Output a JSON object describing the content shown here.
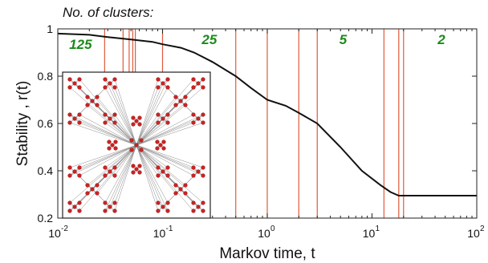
{
  "header": {
    "clusters_label": "No. of clusters:"
  },
  "chart_data": {
    "type": "line",
    "title": "",
    "xlabel": "Markov time, t",
    "ylabel": "Stability ,  r(t)",
    "xscale": "log",
    "xlim": [
      0.01,
      100
    ],
    "ylim": [
      0.2,
      1.0
    ],
    "x_ticks": [
      {
        "base": "10",
        "exp": "-2"
      },
      {
        "base": "10",
        "exp": "-1"
      },
      {
        "base": "10",
        "exp": "0"
      },
      {
        "base": "10",
        "exp": "1"
      },
      {
        "base": "10",
        "exp": "2"
      }
    ],
    "y_ticks": [
      "0.2",
      "0.4",
      "0.6",
      "0.8",
      "1"
    ],
    "y_tick_values": [
      0.2,
      0.4,
      0.6,
      0.8,
      1.0
    ],
    "grid": false,
    "series": [
      {
        "color": "#111111",
        "x": [
          0.01,
          0.02,
          0.03,
          0.05,
          0.08,
          0.1,
          0.15,
          0.2,
          0.3,
          0.5,
          0.7,
          1.0,
          1.5,
          2.0,
          3.0,
          5.0,
          8.0,
          12.0,
          15.0,
          18.0,
          20.0,
          30.0,
          50.0,
          100.0
        ],
        "y": [
          0.98,
          0.975,
          0.965,
          0.955,
          0.945,
          0.935,
          0.92,
          0.9,
          0.86,
          0.8,
          0.75,
          0.7,
          0.675,
          0.645,
          0.6,
          0.5,
          0.4,
          0.34,
          0.31,
          0.295,
          0.295,
          0.295,
          0.295,
          0.295
        ]
      }
    ],
    "vertical_lines": {
      "color": "#e05a3a",
      "x": [
        0.028,
        0.042,
        0.048,
        0.052,
        0.055,
        0.1,
        0.5,
        1.0,
        2.0,
        3.0,
        13.0,
        18.0,
        20.0
      ]
    },
    "annotations": [
      {
        "text": "125",
        "x": 0.0165,
        "y": 0.915
      },
      {
        "text": "25",
        "x": 0.28,
        "y": 0.935
      },
      {
        "text": "5",
        "x": 5.3,
        "y": 0.935
      },
      {
        "text": "2",
        "x": 46.0,
        "y": 0.935
      }
    ]
  },
  "inset": {
    "description_name": "network-graph-inset",
    "node_color": "#cc2222",
    "edge_color": "#888888"
  }
}
